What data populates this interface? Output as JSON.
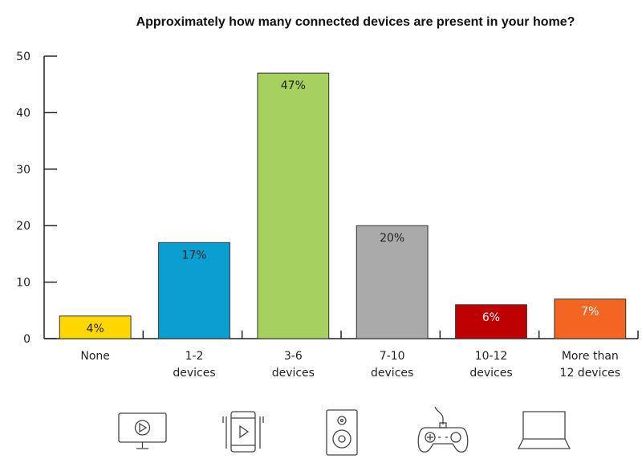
{
  "chart_data": {
    "type": "bar",
    "title": "Approximately how many connected devices are present in your home?",
    "categories": [
      [
        "None"
      ],
      [
        "1-2",
        "devices"
      ],
      [
        "3-6",
        "devices"
      ],
      [
        "7-10",
        "devices"
      ],
      [
        "10-12",
        "devices"
      ],
      [
        "More than",
        "12 devices"
      ]
    ],
    "values": [
      4,
      17,
      47,
      20,
      6,
      7
    ],
    "data_labels": [
      "4%",
      "17%",
      "47%",
      "20%",
      "6%",
      "7%"
    ],
    "colors": [
      "#ffd700",
      "#0a9fd0",
      "#a6d05f",
      "#aaaaaa",
      "#bf0000",
      "#f26522"
    ],
    "label_colors": [
      "#222222",
      "#222222",
      "#222222",
      "#222222",
      "#ffffff",
      "#ffffff"
    ],
    "ylim": [
      0,
      50
    ],
    "yticks": [
      0,
      10,
      20,
      30,
      40,
      50
    ],
    "xlabel": "",
    "ylabel": "",
    "grid": false,
    "legend": "none"
  },
  "icons": [
    "tv-icon",
    "smartphone-icon",
    "speaker-icon",
    "gamepad-icon",
    "laptop-icon"
  ]
}
